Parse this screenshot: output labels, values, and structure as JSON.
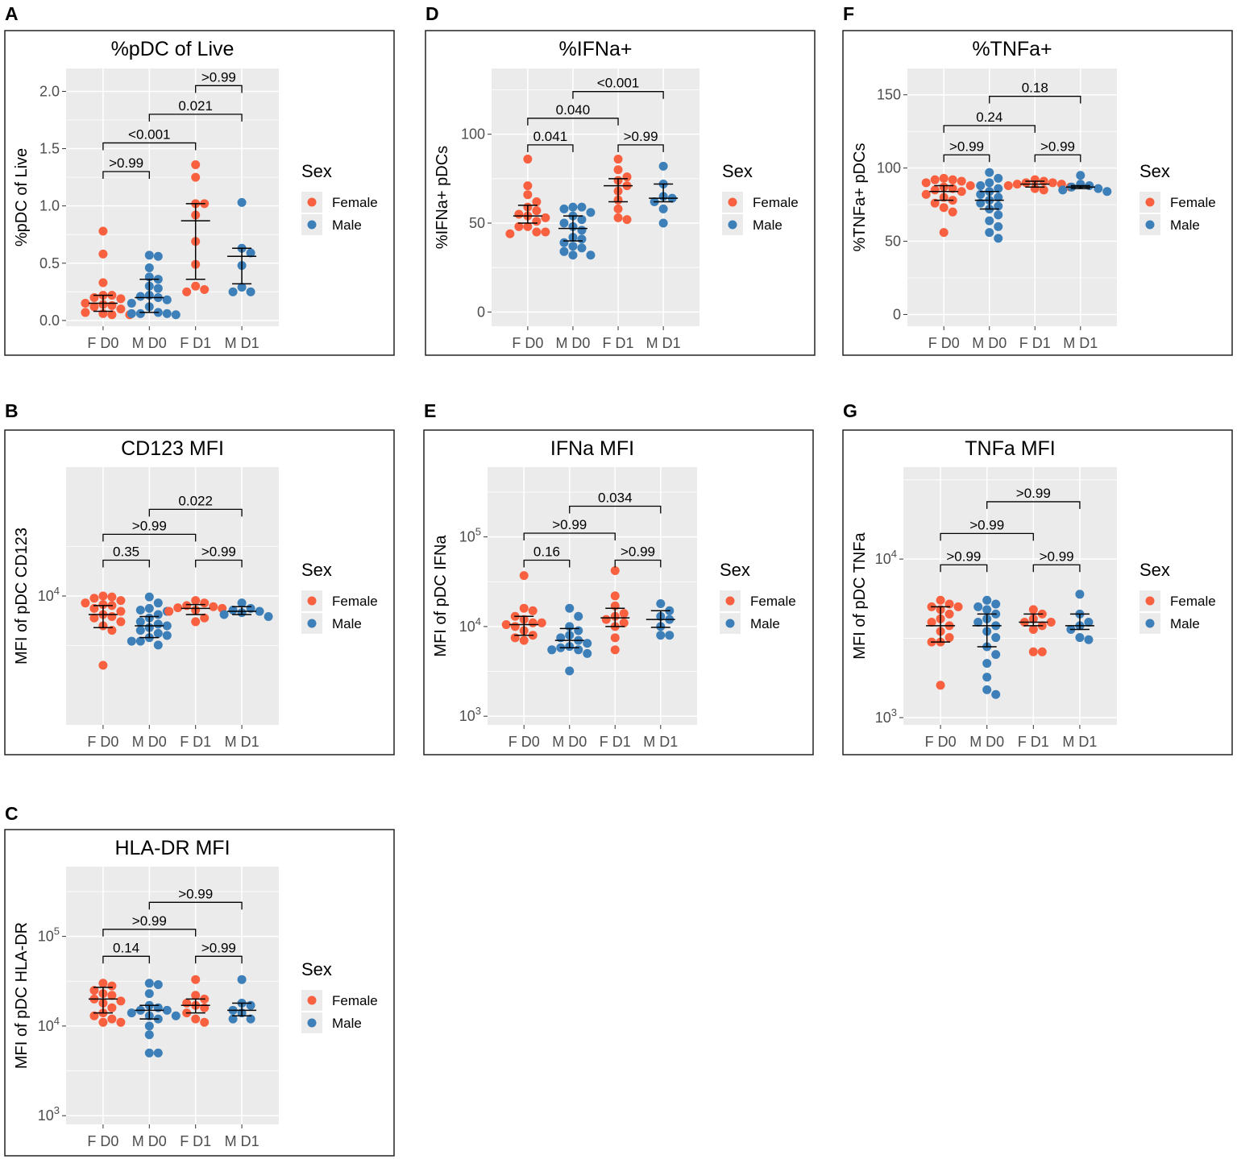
{
  "legend": {
    "title": "Sex",
    "female_label": "Female",
    "male_label": "Male",
    "female_color": "#F8603F",
    "male_color": "#3D7FB8"
  },
  "chart_data": [
    {
      "letter": "A",
      "type": "scatter",
      "title": "%pDC of Live",
      "ylabel": "%pDC of Live",
      "scale": "linear",
      "ylim": [
        -0.05,
        2.2
      ],
      "yticks": [
        {
          "v": 0,
          "label": "0.0"
        },
        {
          "v": 0.5,
          "label": "0.5"
        },
        {
          "v": 1.0,
          "label": "1.0"
        },
        {
          "v": 1.5,
          "label": "1.5"
        },
        {
          "v": 2.0,
          "label": "2.0"
        }
      ],
      "minor": [
        0.25,
        0.75,
        1.25,
        1.75
      ],
      "categories": [
        "F D0",
        "M D0",
        "F D1",
        "M D1"
      ],
      "groups": [
        {
          "sex": "F",
          "median": 0.15,
          "q1": 0.08,
          "q3": 0.22,
          "points": [
            0.78,
            0.58,
            0.33,
            0.22,
            0.22,
            0.2,
            0.19,
            0.15,
            0.14,
            0.13,
            0.12,
            0.1,
            0.07,
            0.06,
            0.05,
            0.05
          ]
        },
        {
          "sex": "M",
          "median": 0.2,
          "q1": 0.07,
          "q3": 0.36,
          "points": [
            0.57,
            0.56,
            0.46,
            0.38,
            0.36,
            0.3,
            0.28,
            0.22,
            0.21,
            0.2,
            0.18,
            0.15,
            0.12,
            0.07,
            0.06,
            0.06,
            0.06,
            0.05
          ]
        },
        {
          "sex": "F",
          "median": 0.87,
          "q1": 0.36,
          "q3": 1.02,
          "points": [
            1.36,
            1.25,
            1.02,
            1.02,
            0.92,
            0.69,
            0.49,
            0.3,
            0.27,
            0.25
          ]
        },
        {
          "sex": "M",
          "median": 0.56,
          "q1": 0.32,
          "q3": 0.63,
          "points": [
            1.03,
            0.63,
            0.59,
            0.48,
            0.29,
            0.25,
            0.25
          ]
        }
      ],
      "brackets": [
        {
          "from": 0,
          "to": 1,
          "y": 1.3,
          "label": ">0.99"
        },
        {
          "from": 0,
          "to": 2,
          "y": 1.55,
          "label": "<0.001"
        },
        {
          "from": 1,
          "to": 3,
          "y": 1.8,
          "label": "0.021"
        },
        {
          "from": 2,
          "to": 3,
          "y": 2.05,
          "label": ">0.99"
        }
      ]
    },
    {
      "letter": "B",
      "type": "scatter",
      "title": "CD123 MFI",
      "ylabel": "MFI of pDC CD123",
      "scale": "log",
      "ylim": [
        500,
        200000
      ],
      "yticks": [
        {
          "v": 10000,
          "label": "10",
          "sup": "4"
        }
      ],
      "minor": [],
      "categories": [
        "F D0",
        "M D0",
        "F D1",
        "M D1"
      ],
      "groups": [
        {
          "sex": "F",
          "median": 6500,
          "q1": 4800,
          "q3": 8000,
          "points": [
            10000,
            9800,
            9500,
            9000,
            8500,
            8200,
            8000,
            7500,
            7000,
            6500,
            6200,
            6000,
            5500,
            5000,
            4500,
            2000
          ]
        },
        {
          "sex": "M",
          "median": 5000,
          "q1": 3800,
          "q3": 6200,
          "points": [
            9800,
            8500,
            7500,
            7200,
            7000,
            6500,
            6000,
            5500,
            5200,
            5000,
            4800,
            4500,
            4200,
            4000,
            3800,
            3500,
            3500,
            3200
          ]
        },
        {
          "sex": "F",
          "median": 7500,
          "q1": 6500,
          "q3": 8200,
          "points": [
            9000,
            8500,
            8000,
            7800,
            7600,
            7500,
            7200,
            7000,
            6000,
            5500
          ]
        },
        {
          "sex": "M",
          "median": 7000,
          "q1": 6500,
          "q3": 7800,
          "points": [
            8500,
            7500,
            7200,
            7000,
            6800,
            6500,
            6200
          ]
        }
      ],
      "brackets": [
        {
          "from": 0,
          "to": 1,
          "y": 23000,
          "label": "0.35"
        },
        {
          "from": 2,
          "to": 3,
          "y": 23000,
          "label": ">0.99"
        },
        {
          "from": 0,
          "to": 2,
          "y": 42000,
          "label": ">0.99"
        },
        {
          "from": 1,
          "to": 3,
          "y": 75000,
          "label": "0.022"
        }
      ]
    },
    {
      "letter": "C",
      "type": "scatter",
      "title": "HLA-DR MFI",
      "ylabel": "MFI of pDC HLA-DR",
      "scale": "log",
      "ylim": [
        800,
        600000
      ],
      "yticks": [
        {
          "v": 1000,
          "label": "10",
          "sup": "3"
        },
        {
          "v": 10000,
          "label": "10",
          "sup": "4"
        },
        {
          "v": 100000,
          "label": "10",
          "sup": "5"
        }
      ],
      "minor": [],
      "categories": [
        "F D0",
        "M D0",
        "F D1",
        "M D1"
      ],
      "groups": [
        {
          "sex": "F",
          "median": 20000,
          "q1": 14000,
          "q3": 27000,
          "points": [
            30000,
            28000,
            25000,
            23000,
            22000,
            20000,
            19000,
            18000,
            16000,
            14000,
            13000,
            12000,
            11000,
            11000
          ]
        },
        {
          "sex": "M",
          "median": 15000,
          "q1": 12000,
          "q3": 17000,
          "points": [
            30000,
            29000,
            23000,
            17000,
            16000,
            15000,
            15000,
            14000,
            13000,
            13000,
            12000,
            10000,
            8000,
            5000,
            5000
          ]
        },
        {
          "sex": "F",
          "median": 17000,
          "q1": 14000,
          "q3": 20000,
          "points": [
            33000,
            22000,
            20000,
            18000,
            17000,
            16000,
            14000,
            12000,
            11000
          ]
        },
        {
          "sex": "M",
          "median": 15000,
          "q1": 13000,
          "q3": 18000,
          "points": [
            33000,
            18000,
            17000,
            15000,
            14000,
            12000,
            12000
          ]
        }
      ],
      "brackets": [
        {
          "from": 0,
          "to": 1,
          "y": 60000,
          "label": "0.14"
        },
        {
          "from": 2,
          "to": 3,
          "y": 60000,
          "label": ">0.99"
        },
        {
          "from": 0,
          "to": 2,
          "y": 120000,
          "label": ">0.99"
        },
        {
          "from": 1,
          "to": 3,
          "y": 240000,
          "label": ">0.99"
        }
      ]
    },
    {
      "letter": "D",
      "type": "scatter",
      "title": "%IFNa+",
      "ylabel": "%IFNa+ pDCs",
      "scale": "linear",
      "ylim": [
        -8,
        137
      ],
      "yticks": [
        {
          "v": 0,
          "label": "0"
        },
        {
          "v": 50,
          "label": "50"
        },
        {
          "v": 100,
          "label": "100"
        }
      ],
      "minor": [
        25,
        75,
        125
      ],
      "categories": [
        "F D0",
        "M D0",
        "F D1",
        "M D1"
      ],
      "groups": [
        {
          "sex": "F",
          "median": 54,
          "q1": 50,
          "q3": 60,
          "points": [
            86,
            71,
            66,
            62,
            59,
            57,
            55,
            54,
            53,
            51,
            48,
            48,
            45,
            45,
            44
          ]
        },
        {
          "sex": "M",
          "median": 47,
          "q1": 40,
          "q3": 54,
          "points": [
            59,
            59,
            58,
            56,
            54,
            52,
            50,
            48,
            46,
            42,
            41,
            39,
            37,
            36,
            34,
            32,
            32
          ]
        },
        {
          "sex": "F",
          "median": 71,
          "q1": 62,
          "q3": 75,
          "points": [
            86,
            80,
            76,
            74,
            71,
            68,
            63,
            58,
            53,
            52
          ]
        },
        {
          "sex": "M",
          "median": 64,
          "q1": 62,
          "q3": 72,
          "points": [
            82,
            72,
            65,
            64,
            62,
            58,
            50
          ]
        }
      ],
      "brackets": [
        {
          "from": 0,
          "to": 1,
          "y": 94,
          "label": "0.041"
        },
        {
          "from": 2,
          "to": 3,
          "y": 94,
          "label": ">0.99"
        },
        {
          "from": 0,
          "to": 2,
          "y": 109,
          "label": "0.040"
        },
        {
          "from": 1,
          "to": 3,
          "y": 124,
          "label": "<0.001"
        }
      ]
    },
    {
      "letter": "E",
      "type": "scatter",
      "title": "IFNa MFI",
      "ylabel": "MFI of pDC IFNa",
      "scale": "log",
      "ylim": [
        800,
        600000
      ],
      "yticks": [
        {
          "v": 1000,
          "label": "10",
          "sup": "3"
        },
        {
          "v": 10000,
          "label": "10",
          "sup": "4"
        },
        {
          "v": 100000,
          "label": "10",
          "sup": "5"
        }
      ],
      "minor": [],
      "categories": [
        "F D0",
        "M D0",
        "F D1",
        "M D1"
      ],
      "groups": [
        {
          "sex": "F",
          "median": 10500,
          "q1": 8000,
          "q3": 13000,
          "points": [
            37000,
            16000,
            15000,
            13000,
            12000,
            11000,
            11000,
            10500,
            10000,
            9000,
            8000,
            7500,
            7000
          ]
        },
        {
          "sex": "M",
          "median": 7000,
          "q1": 5800,
          "q3": 9500,
          "points": [
            16000,
            13000,
            10000,
            9000,
            8000,
            7500,
            7000,
            6500,
            6000,
            5800,
            5500,
            5500,
            5000,
            3200
          ]
        },
        {
          "sex": "F",
          "median": 12500,
          "q1": 10000,
          "q3": 16000,
          "points": [
            42000,
            22000,
            17000,
            14000,
            13000,
            12000,
            11000,
            10000,
            7500,
            5500
          ]
        },
        {
          "sex": "M",
          "median": 12000,
          "q1": 9800,
          "q3": 15000,
          "points": [
            18000,
            15000,
            13000,
            12000,
            10000,
            8000,
            8000
          ]
        }
      ],
      "brackets": [
        {
          "from": 0,
          "to": 1,
          "y": 55000,
          "label": "0.16"
        },
        {
          "from": 2,
          "to": 3,
          "y": 55000,
          "label": ">0.99"
        },
        {
          "from": 0,
          "to": 2,
          "y": 110000,
          "label": ">0.99"
        },
        {
          "from": 1,
          "to": 3,
          "y": 220000,
          "label": "0.034"
        }
      ]
    },
    {
      "letter": "F",
      "type": "scatter",
      "title": "%TNFa+",
      "ylabel": "%TNFa+ pDCs",
      "scale": "linear",
      "ylim": [
        -8,
        168
      ],
      "yticks": [
        {
          "v": 0,
          "label": "0"
        },
        {
          "v": 50,
          "label": "50"
        },
        {
          "v": 100,
          "label": "100"
        },
        {
          "v": 150,
          "label": "150"
        }
      ],
      "minor": [
        25,
        75,
        125
      ],
      "categories": [
        "F D0",
        "M D0",
        "F D1",
        "M D1"
      ],
      "groups": [
        {
          "sex": "F",
          "median": 84,
          "q1": 78,
          "q3": 88,
          "points": [
            93,
            92,
            92,
            91,
            90,
            88,
            87,
            86,
            85,
            84,
            82,
            80,
            78,
            76,
            73,
            70,
            56
          ]
        },
        {
          "sex": "M",
          "median": 78,
          "q1": 72,
          "q3": 84,
          "points": [
            97,
            93,
            90,
            88,
            86,
            84,
            82,
            80,
            78,
            76,
            74,
            72,
            68,
            64,
            60,
            56,
            52
          ]
        },
        {
          "sex": "F",
          "median": 89,
          "q1": 87,
          "q3": 91,
          "points": [
            92,
            91,
            90,
            90,
            89,
            89,
            88,
            87,
            86,
            85
          ]
        },
        {
          "sex": "M",
          "median": 87,
          "q1": 86,
          "q3": 88,
          "points": [
            95,
            89,
            88,
            87,
            86,
            85,
            84
          ]
        }
      ],
      "brackets": [
        {
          "from": 0,
          "to": 1,
          "y": 109,
          "label": ">0.99"
        },
        {
          "from": 2,
          "to": 3,
          "y": 109,
          "label": ">0.99"
        },
        {
          "from": 0,
          "to": 2,
          "y": 129,
          "label": "0.24"
        },
        {
          "from": 1,
          "to": 3,
          "y": 149,
          "label": "0.18"
        }
      ]
    },
    {
      "letter": "G",
      "type": "scatter",
      "title": "TNFa MFI",
      "ylabel": "MFI of pDC TNFa",
      "scale": "log",
      "ylim": [
        900,
        38000
      ],
      "yticks": [
        {
          "v": 1000,
          "label": "10",
          "sup": "3"
        },
        {
          "v": 10000,
          "label": "10",
          "sup": "4"
        }
      ],
      "minor": [],
      "categories": [
        "F D0",
        "M D0",
        "F D1",
        "M D1"
      ],
      "groups": [
        {
          "sex": "F",
          "median": 3800,
          "q1": 3000,
          "q3": 5000,
          "points": [
            5500,
            5200,
            5000,
            5000,
            4800,
            4500,
            4200,
            4000,
            3800,
            3500,
            3200,
            3000,
            3000,
            1600
          ]
        },
        {
          "sex": "M",
          "median": 3800,
          "q1": 2800,
          "q3": 4500,
          "points": [
            5500,
            5200,
            5000,
            4800,
            4500,
            4200,
            4000,
            3800,
            3500,
            3200,
            2800,
            2500,
            2200,
            1800,
            1500,
            1400
          ]
        },
        {
          "sex": "F",
          "median": 4000,
          "q1": 3800,
          "q3": 4500,
          "points": [
            4800,
            4500,
            4200,
            4000,
            4000,
            3800,
            3600,
            2600,
            2600
          ]
        },
        {
          "sex": "M",
          "median": 3800,
          "q1": 3600,
          "q3": 4500,
          "points": [
            6000,
            4500,
            4000,
            3800,
            3600,
            3200,
            3100
          ]
        }
      ],
      "brackets": [
        {
          "from": 0,
          "to": 1,
          "y": 9200,
          "label": ">0.99"
        },
        {
          "from": 2,
          "to": 3,
          "y": 9200,
          "label": ">0.99"
        },
        {
          "from": 0,
          "to": 2,
          "y": 14500,
          "label": ">0.99"
        },
        {
          "from": 1,
          "to": 3,
          "y": 23000,
          "label": ">0.99"
        }
      ]
    }
  ]
}
